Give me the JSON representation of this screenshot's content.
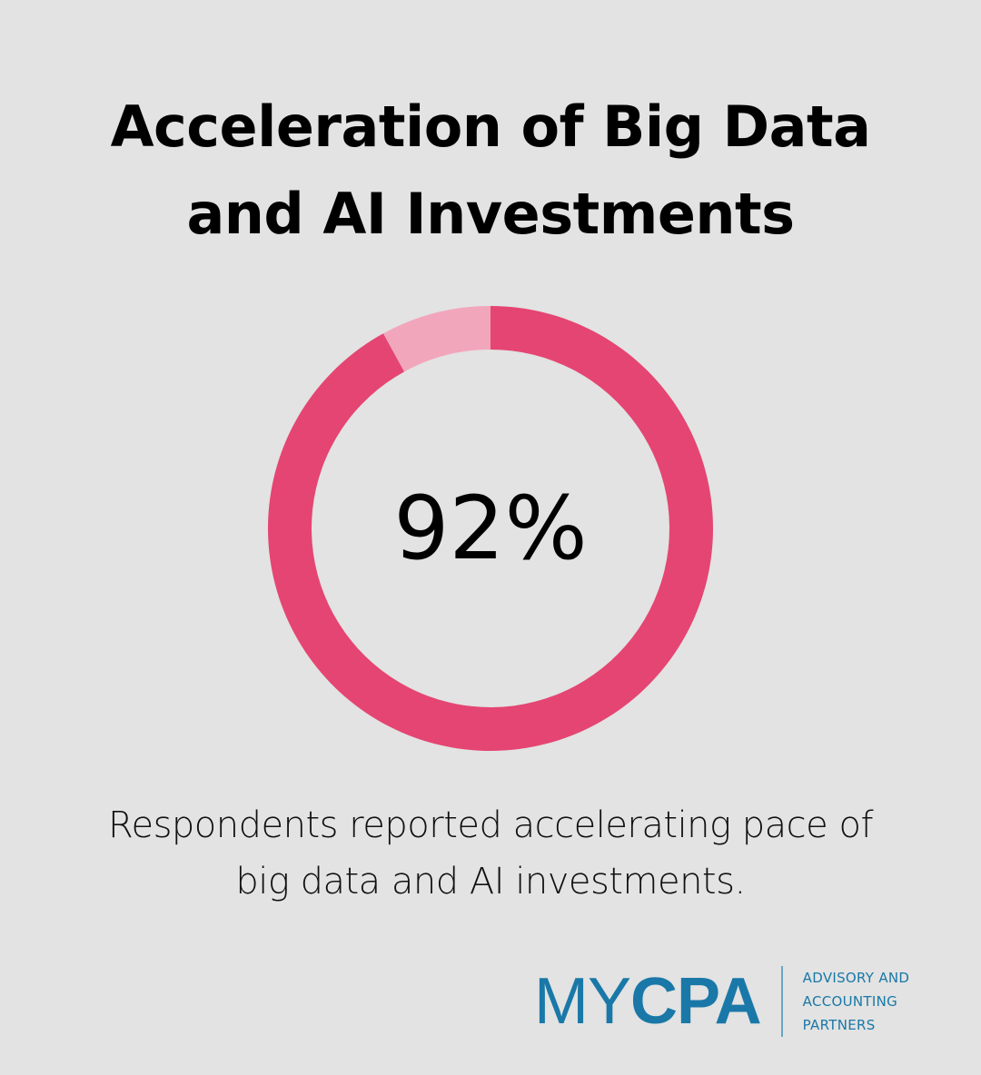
{
  "title_lines": [
    "Acceleration of Big Data",
    "and AI Investments"
  ],
  "chart_data": {
    "type": "pie",
    "style": "donut",
    "values": [
      92,
      8
    ],
    "value_label": "92%",
    "colors": [
      "#e54573",
      "#f2a6bc"
    ]
  },
  "caption_lines": [
    "Respondents reported accelerating pace of",
    "big data and AI investments."
  ],
  "logo": {
    "my": "MY",
    "cpa": "CPA",
    "tagline": [
      "ADVISORY AND",
      "ACCOUNTING",
      "PARTNERS"
    ],
    "color": "#1a78a8"
  }
}
